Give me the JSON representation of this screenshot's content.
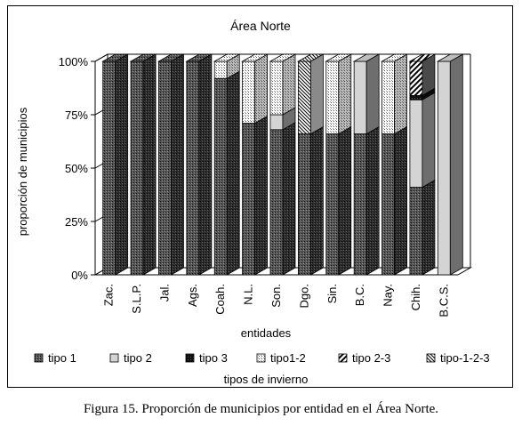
{
  "caption": "Figura 15. Proporción de municipios por entidad en el Área Norte.",
  "chart_data": {
    "type": "bar",
    "stacked": true,
    "style": "3d",
    "title": "Área Norte",
    "xlabel": "entidades",
    "ylabel": "proporción de municipios",
    "ylim": [
      0,
      100
    ],
    "yticks": [
      "0%",
      "25%",
      "50%",
      "75%",
      "100%"
    ],
    "grid": false,
    "legend_title": "tipos de invierno",
    "legend_position": "bottom",
    "categories": [
      "Zac.",
      "S.L.P.",
      "Jal.",
      "Ags.",
      "Coah.",
      "N.L.",
      "Son.",
      "Dgo.",
      "Sin.",
      "B.C.",
      "Nay.",
      "Chih.",
      "B.C.S."
    ],
    "series": [
      {
        "name": "tipo 1",
        "values": [
          100,
          100,
          100,
          100,
          92,
          71,
          68,
          66,
          66,
          66,
          66,
          41,
          0
        ]
      },
      {
        "name": "tipo 2",
        "values": [
          0,
          0,
          0,
          0,
          0,
          0,
          7,
          0,
          0,
          34,
          0,
          41,
          100
        ]
      },
      {
        "name": "tipo 3",
        "values": [
          0,
          0,
          0,
          0,
          0,
          0,
          0,
          0,
          0,
          0,
          0,
          2,
          0
        ]
      },
      {
        "name": "tipo1-2",
        "values": [
          0,
          0,
          0,
          0,
          8,
          29,
          25,
          0,
          34,
          0,
          34,
          0,
          0
        ]
      },
      {
        "name": "tipo 2-3",
        "values": [
          0,
          0,
          0,
          0,
          0,
          0,
          0,
          0,
          0,
          0,
          0,
          16,
          0
        ]
      },
      {
        "name": "tipo-1-2-3",
        "values": [
          0,
          0,
          0,
          0,
          0,
          0,
          0,
          34,
          0,
          0,
          0,
          0,
          0
        ]
      }
    ],
    "colors": {
      "tipo 1": "#3a3a3a",
      "tipo 2": "#d4d4d4",
      "tipo 3": "#151515",
      "tipo1-2": "#ffffff",
      "tipo 2-3": "#ffffff",
      "tipo-1-2-3": "#ffffff"
    }
  }
}
